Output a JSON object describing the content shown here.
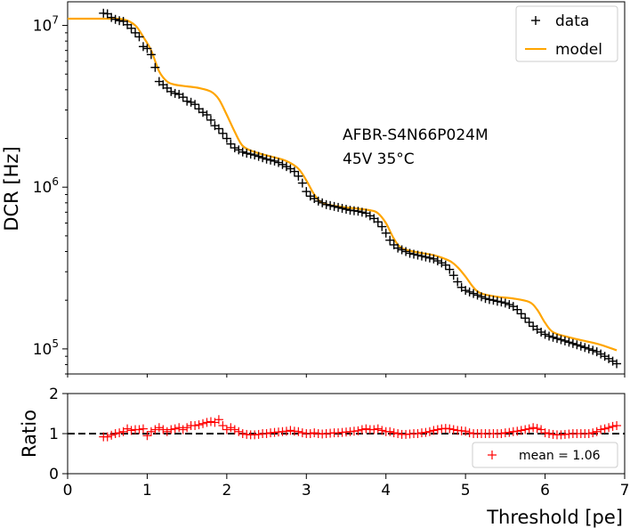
{
  "chart_data": [
    {
      "type": "scatter+line",
      "ylabel": "DCR [Hz]",
      "xlabel": "",
      "yscale": "log",
      "xlim": [
        0,
        7
      ],
      "ylim": [
        70000,
        14000000
      ],
      "yticks": [
        100000,
        1000000,
        10000000
      ],
      "ytick_labels": [
        {
          "base": "10",
          "exp": "5"
        },
        {
          "base": "10",
          "exp": "6"
        },
        {
          "base": "10",
          "exp": "7"
        }
      ],
      "annotation": [
        "AFBR-S4N66P024M",
        "45V 35°C"
      ],
      "legend": {
        "position": "top-right",
        "entries": [
          {
            "label": "data",
            "marker": "+",
            "color": "#000000"
          },
          {
            "label": "model",
            "line": true,
            "color": "#FFA500"
          }
        ]
      },
      "series": [
        {
          "name": "data",
          "color": "#000000",
          "x": [
            0.45,
            0.5,
            0.55,
            0.6,
            0.65,
            0.7,
            0.75,
            0.8,
            0.85,
            0.9,
            0.95,
            1.0,
            1.05,
            1.1,
            1.15,
            1.2,
            1.25,
            1.3,
            1.35,
            1.4,
            1.45,
            1.5,
            1.55,
            1.6,
            1.65,
            1.7,
            1.75,
            1.8,
            1.85,
            1.9,
            1.95,
            2.0,
            2.05,
            2.1,
            2.15,
            2.2,
            2.25,
            2.3,
            2.35,
            2.4,
            2.45,
            2.5,
            2.55,
            2.6,
            2.65,
            2.7,
            2.75,
            2.8,
            2.85,
            2.9,
            2.95,
            3.0,
            3.05,
            3.1,
            3.15,
            3.2,
            3.25,
            3.3,
            3.35,
            3.4,
            3.45,
            3.5,
            3.55,
            3.6,
            3.65,
            3.7,
            3.75,
            3.8,
            3.85,
            3.9,
            3.95,
            4.0,
            4.05,
            4.1,
            4.15,
            4.2,
            4.25,
            4.3,
            4.35,
            4.4,
            4.45,
            4.5,
            4.55,
            4.6,
            4.65,
            4.7,
            4.75,
            4.8,
            4.85,
            4.9,
            4.95,
            5.0,
            5.05,
            5.1,
            5.15,
            5.2,
            5.25,
            5.3,
            5.35,
            5.4,
            5.45,
            5.5,
            5.55,
            5.6,
            5.65,
            5.7,
            5.75,
            5.8,
            5.85,
            5.9,
            5.95,
            6.0,
            6.05,
            6.1,
            6.15,
            6.2,
            6.25,
            6.3,
            6.35,
            6.4,
            6.45,
            6.5,
            6.55,
            6.6,
            6.65,
            6.7,
            6.75,
            6.8,
            6.85,
            6.9
          ],
          "y": [
            11900000,
            11800000,
            11200000,
            10900000,
            10700000,
            10600000,
            10100000,
            9600000,
            9000000,
            8500000,
            7400000,
            7200000,
            6600000,
            5500000,
            4500000,
            4300000,
            4100000,
            3900000,
            3800000,
            3750000,
            3600000,
            3400000,
            3350000,
            3250000,
            3050000,
            2900000,
            2800000,
            2600000,
            2400000,
            2300000,
            2150000,
            2000000,
            1850000,
            1750000,
            1700000,
            1650000,
            1620000,
            1600000,
            1580000,
            1550000,
            1520000,
            1490000,
            1470000,
            1450000,
            1420000,
            1380000,
            1340000,
            1300000,
            1250000,
            1170000,
            1060000,
            940000,
            880000,
            850000,
            820000,
            800000,
            780000,
            770000,
            760000,
            750000,
            740000,
            730000,
            720000,
            715000,
            710000,
            700000,
            690000,
            665000,
            640000,
            610000,
            570000,
            520000,
            470000,
            440000,
            420000,
            410000,
            400000,
            390000,
            385000,
            380000,
            375000,
            370000,
            365000,
            360000,
            350000,
            340000,
            330000,
            310000,
            285000,
            260000,
            240000,
            230000,
            225000,
            220000,
            215000,
            210000,
            205000,
            202000,
            200000,
            197000,
            195000,
            192000,
            188000,
            183000,
            175000,
            165000,
            155000,
            146000,
            138000,
            132000,
            127000,
            123000,
            120000,
            118000,
            116000,
            114000,
            112000,
            110000,
            108000,
            106000,
            104000,
            102000,
            100000,
            98000,
            96000,
            93000,
            90000,
            87000,
            84000,
            81000
          ]
        },
        {
          "name": "model",
          "color": "#FFA500",
          "x": [
            0,
            0.5,
            0.7,
            0.85,
            0.95,
            1.05,
            1.15,
            1.25,
            1.35,
            1.5,
            1.65,
            1.8,
            1.9,
            2.0,
            2.1,
            2.2,
            2.35,
            2.55,
            2.75,
            2.9,
            3.0,
            3.1,
            3.2,
            3.4,
            3.6,
            3.8,
            3.9,
            4.0,
            4.1,
            4.2,
            4.4,
            4.6,
            4.8,
            4.9,
            5.0,
            5.1,
            5.2,
            5.4,
            5.6,
            5.8,
            5.9,
            6.0,
            6.1,
            6.3,
            6.5,
            6.7,
            6.9
          ],
          "y": [
            11000000,
            11000000,
            10900000,
            10000000,
            8500000,
            7000000,
            5200000,
            4500000,
            4300000,
            4200000,
            4100000,
            3900000,
            3500000,
            2800000,
            2200000,
            1800000,
            1650000,
            1550000,
            1450000,
            1300000,
            1100000,
            900000,
            800000,
            760000,
            740000,
            720000,
            690000,
            600000,
            480000,
            420000,
            395000,
            380000,
            350000,
            320000,
            280000,
            240000,
            220000,
            210000,
            205000,
            195000,
            175000,
            145000,
            127000,
            118000,
            112000,
            106000,
            98000
          ]
        }
      ]
    },
    {
      "type": "scatter",
      "ylabel": "Ratio",
      "xlabel": "Threshold [pe]",
      "xlim": [
        0,
        7
      ],
      "ylim": [
        0,
        2
      ],
      "xticks": [
        0,
        1,
        2,
        3,
        4,
        5,
        6,
        7
      ],
      "xtick_labels": [
        "0",
        "1",
        "2",
        "3",
        "4",
        "5",
        "6",
        "7"
      ],
      "yticks": [
        0,
        1,
        2
      ],
      "ytick_labels": [
        "0",
        "1",
        "2"
      ],
      "reference_line": {
        "y": 1.0,
        "style": "dashed",
        "color": "#000000"
      },
      "legend": {
        "position": "lower-right",
        "entries": [
          {
            "label": "mean = 1.06",
            "marker": "+",
            "color": "#FF0000"
          }
        ]
      },
      "series": [
        {
          "name": "ratio",
          "color": "#FF0000",
          "x": [
            0.45,
            0.5,
            0.55,
            0.6,
            0.65,
            0.7,
            0.75,
            0.8,
            0.85,
            0.9,
            0.95,
            1.0,
            1.05,
            1.1,
            1.15,
            1.2,
            1.25,
            1.3,
            1.35,
            1.4,
            1.45,
            1.5,
            1.55,
            1.6,
            1.65,
            1.7,
            1.75,
            1.8,
            1.85,
            1.9,
            1.95,
            2.0,
            2.05,
            2.1,
            2.15,
            2.2,
            2.25,
            2.3,
            2.35,
            2.4,
            2.45,
            2.5,
            2.55,
            2.6,
            2.65,
            2.7,
            2.75,
            2.8,
            2.85,
            2.9,
            2.95,
            3.0,
            3.05,
            3.1,
            3.15,
            3.2,
            3.25,
            3.3,
            3.35,
            3.4,
            3.45,
            3.5,
            3.55,
            3.6,
            3.65,
            3.7,
            3.75,
            3.8,
            3.85,
            3.9,
            3.95,
            4.0,
            4.05,
            4.1,
            4.15,
            4.2,
            4.25,
            4.3,
            4.35,
            4.4,
            4.45,
            4.5,
            4.55,
            4.6,
            4.65,
            4.7,
            4.75,
            4.8,
            4.85,
            4.9,
            4.95,
            5.0,
            5.05,
            5.1,
            5.15,
            5.2,
            5.25,
            5.3,
            5.35,
            5.4,
            5.45,
            5.5,
            5.55,
            5.6,
            5.65,
            5.7,
            5.75,
            5.8,
            5.85,
            5.9,
            5.95,
            6.0,
            6.05,
            6.1,
            6.15,
            6.2,
            6.25,
            6.3,
            6.35,
            6.4,
            6.45,
            6.5,
            6.55,
            6.6,
            6.65,
            6.7,
            6.75,
            6.8,
            6.85,
            6.9
          ],
          "y": [
            0.92,
            0.92,
            0.96,
            1.0,
            1.02,
            1.05,
            1.12,
            1.08,
            1.1,
            1.1,
            1.12,
            0.95,
            1.05,
            1.1,
            1.15,
            1.1,
            1.05,
            1.1,
            1.12,
            1.15,
            1.1,
            1.15,
            1.2,
            1.2,
            1.22,
            1.25,
            1.28,
            1.3,
            1.28,
            1.35,
            1.2,
            1.1,
            1.15,
            1.1,
            1.05,
            1.0,
            0.98,
            0.97,
            0.97,
            0.98,
            1.0,
            1.0,
            1.02,
            1.03,
            1.04,
            1.05,
            1.06,
            1.08,
            1.06,
            1.05,
            1.02,
            1.0,
            1.0,
            1.02,
            1.0,
            0.99,
            1.0,
            1.01,
            1.02,
            1.02,
            1.03,
            1.04,
            1.05,
            1.06,
            1.07,
            1.1,
            1.12,
            1.1,
            1.1,
            1.12,
            1.08,
            1.05,
            1.05,
            1.02,
            1.0,
            0.98,
            0.98,
            0.99,
            1.0,
            1.0,
            1.02,
            1.03,
            1.05,
            1.08,
            1.1,
            1.12,
            1.13,
            1.12,
            1.1,
            1.08,
            1.07,
            1.06,
            1.02,
            1.0,
            1.0,
            1.0,
            1.0,
            1.0,
            1.0,
            1.0,
            1.0,
            1.02,
            1.03,
            1.05,
            1.06,
            1.08,
            1.1,
            1.12,
            1.15,
            1.13,
            1.1,
            1.02,
            1.0,
            0.98,
            0.97,
            0.97,
            0.98,
            0.99,
            1.0,
            1.0,
            1.0,
            1.0,
            1.0,
            1.02,
            1.05,
            1.1,
            1.12,
            1.15,
            1.18,
            1.2
          ]
        }
      ]
    }
  ]
}
